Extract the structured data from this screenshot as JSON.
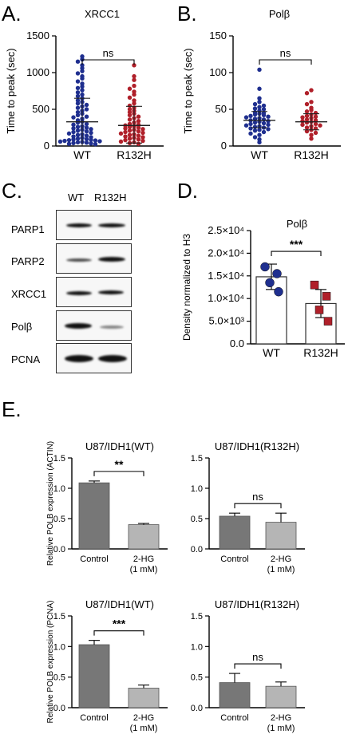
{
  "panel_letters": {
    "a": "A.",
    "b": "B.",
    "c": "C.",
    "d": "D.",
    "e": "E."
  },
  "blot": {
    "columns": [
      "WT",
      "R132H"
    ],
    "rows": [
      {
        "label": "PARP1",
        "intensity": [
          0.95,
          0.95
        ]
      },
      {
        "label": "PARP2",
        "intensity": [
          0.8,
          0.95
        ]
      },
      {
        "label": "XRCC1",
        "intensity": [
          0.95,
          0.95
        ]
      },
      {
        "label": "Polβ",
        "intensity": [
          0.95,
          0.45
        ]
      },
      {
        "label": "PCNA",
        "intensity": [
          1.0,
          1.0
        ]
      }
    ]
  },
  "chart_data": [
    {
      "id": "A",
      "type": "scatter",
      "title": "XRCC1",
      "categories": [
        "WT",
        "R132H"
      ],
      "ylabel": "Time to peak (sec)",
      "ylim": [
        0,
        1500
      ],
      "yticks": [
        0,
        500,
        1000,
        1500
      ],
      "series": [
        {
          "category": "WT",
          "color": "#1f2f8f",
          "mean": 330,
          "sd": [
            0,
            650
          ],
          "values": [
            1220,
            1180,
            1150,
            1100,
            1060,
            1020,
            990,
            950,
            920,
            880,
            850,
            810,
            790,
            760,
            730,
            700,
            680,
            650,
            620,
            600,
            580,
            560,
            540,
            520,
            500,
            480,
            460,
            440,
            420,
            400,
            390,
            370,
            350,
            330,
            320,
            300,
            290,
            270,
            260,
            250,
            240,
            230,
            220,
            210,
            200,
            190,
            180,
            170,
            160,
            150,
            140,
            130,
            120,
            110,
            100,
            95,
            90,
            85,
            80,
            75,
            70,
            65,
            60,
            55,
            50,
            45,
            40,
            35,
            30,
            25
          ]
        },
        {
          "category": "R132H",
          "color": "#b0202a",
          "mean": 280,
          "sd": [
            40,
            540
          ],
          "values": [
            1100,
            950,
            900,
            820,
            780,
            740,
            700,
            660,
            620,
            580,
            550,
            520,
            500,
            480,
            460,
            440,
            420,
            400,
            380,
            360,
            340,
            320,
            300,
            290,
            280,
            270,
            260,
            250,
            240,
            230,
            220,
            210,
            200,
            190,
            180,
            170,
            160,
            150,
            140,
            130,
            120,
            110,
            100,
            90,
            80,
            70,
            60,
            50,
            40,
            30
          ]
        }
      ],
      "significance": {
        "label": "ns"
      }
    },
    {
      "id": "B",
      "type": "scatter",
      "title": "Polβ",
      "categories": [
        "WT",
        "R132H"
      ],
      "ylabel": "Time to peak (sec)",
      "ylim": [
        0,
        150
      ],
      "yticks": [
        0,
        50,
        100,
        150
      ],
      "series": [
        {
          "category": "WT",
          "color": "#1f2f8f",
          "mean": 35,
          "sd": [
            25,
            47
          ],
          "values": [
            104,
            78,
            65,
            60,
            57,
            55,
            53,
            51,
            50,
            48,
            46,
            45,
            44,
            43,
            42,
            41,
            40,
            39,
            38,
            37,
            36,
            35,
            34,
            33,
            32,
            31,
            30,
            29,
            28,
            27,
            26,
            25,
            24,
            23,
            22,
            21,
            19,
            17,
            15,
            12,
            9,
            5
          ]
        },
        {
          "category": "R132H",
          "color": "#b0202a",
          "mean": 33,
          "sd": [
            22,
            44
          ],
          "values": [
            76,
            72,
            60,
            57,
            52,
            49,
            47,
            45,
            43,
            41,
            40,
            39,
            38,
            36,
            35,
            34,
            33,
            32,
            30,
            29,
            28,
            27,
            25,
            24,
            22,
            20,
            18,
            15,
            10
          ]
        }
      ],
      "significance": {
        "label": "ns"
      }
    },
    {
      "id": "D",
      "type": "bar",
      "title": "Polβ",
      "categories": [
        "WT",
        "R132H"
      ],
      "ylabel": "Density normalized to H3",
      "ylim": [
        0,
        25000
      ],
      "yticks": [
        0,
        5000,
        10000,
        15000,
        20000,
        25000
      ],
      "ytick_labels": [
        "0.0",
        "5.0×10³",
        "1.0×10⁴",
        "1.5×10⁴",
        "2.0×10⁴",
        "2.5×10⁴"
      ],
      "values": [
        14800,
        8900
      ],
      "errors": [
        2800,
        3100
      ],
      "points": [
        [
          17000,
          15500,
          13500,
          11500
        ],
        [
          13000,
          10500,
          7500,
          5000
        ]
      ],
      "colors": [
        "#1f2f8f",
        "#b0202a"
      ],
      "significance": {
        "label": "***"
      }
    },
    {
      "id": "E1",
      "type": "bar",
      "title": "U87/IDH1(WT)",
      "categories": [
        "Control",
        "2-HG\n(1 mM)"
      ],
      "ylabel": "Relative POLB expression (ACTIN)",
      "ylim": [
        0,
        1.5
      ],
      "yticks": [
        0,
        0.5,
        1.0,
        1.5
      ],
      "ytick_labels": [
        "0.0",
        "0.5",
        "1.0",
        "1.5"
      ],
      "values": [
        1.09,
        0.4
      ],
      "errors": [
        0.03,
        0.02
      ],
      "colors": [
        "#777777",
        "#b5b5b5"
      ],
      "significance": {
        "label": "**"
      }
    },
    {
      "id": "E2",
      "type": "bar",
      "title": "U87/IDH1(R132H)",
      "categories": [
        "Control",
        "2-HG\n(1 mM)"
      ],
      "ylabel": "Relative POLB expression (ACTIN)",
      "ylim": [
        0,
        1.5
      ],
      "yticks": [
        0,
        0.5,
        1.0,
        1.5
      ],
      "ytick_labels": [
        "0.0",
        "0.5",
        "1.0",
        "1.5"
      ],
      "values": [
        0.54,
        0.44
      ],
      "errors": [
        0.05,
        0.15
      ],
      "colors": [
        "#777777",
        "#b5b5b5"
      ],
      "significance": {
        "label": "ns"
      }
    },
    {
      "id": "E3",
      "type": "bar",
      "title": "U87/IDH1(WT)",
      "categories": [
        "Control",
        "2-HG\n(1 mM)"
      ],
      "ylabel": "Relative POLB expression (PCNA)",
      "ylim": [
        0,
        1.5
      ],
      "yticks": [
        0,
        0.5,
        1.0,
        1.5
      ],
      "ytick_labels": [
        "0.0",
        "0.5",
        "1.0",
        "1.5"
      ],
      "values": [
        1.03,
        0.32
      ],
      "errors": [
        0.07,
        0.05
      ],
      "colors": [
        "#777777",
        "#b5b5b5"
      ],
      "significance": {
        "label": "***"
      }
    },
    {
      "id": "E4",
      "type": "bar",
      "title": "U87/IDH1(R132H)",
      "categories": [
        "Control",
        "2-HG\n(1 mM)"
      ],
      "ylabel": "Relative POLB expression (PCNA)",
      "ylim": [
        0,
        1.5
      ],
      "yticks": [
        0,
        0.5,
        1.0,
        1.5
      ],
      "ytick_labels": [
        "0.0",
        "0.5",
        "1.0",
        "1.5"
      ],
      "values": [
        0.41,
        0.35
      ],
      "errors": [
        0.15,
        0.07
      ],
      "colors": [
        "#777777",
        "#b5b5b5"
      ],
      "significance": {
        "label": "ns"
      }
    }
  ]
}
